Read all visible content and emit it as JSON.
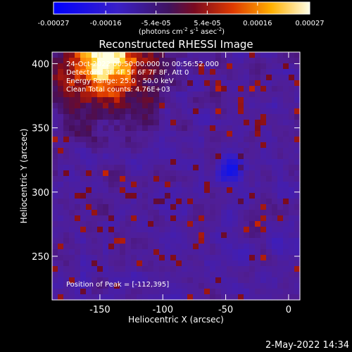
{
  "colorbar": {
    "ticks": [
      "-0.00027",
      "-0.00016",
      "-5.4e-05",
      "5.4e-05",
      "0.00016",
      "0.00027"
    ],
    "units_main": "(photons cm",
    "units_sup1": "-2",
    "units_mid": " s",
    "units_sup2": "-1",
    "units_end": " asec",
    "units_sup3": "-2",
    "units_close": ")",
    "range": [
      -0.00027,
      0.00027
    ]
  },
  "chart_data": {
    "type": "heatmap",
    "title": "Reconstructed RHESSI Image",
    "xlabel": "Heliocentric X (arcsec)",
    "ylabel": "Heliocentric Y (arcsec)",
    "xlim": [
      -188,
      9
    ],
    "ylim": [
      216,
      409
    ],
    "x_ticks": [
      -150,
      -100,
      -50,
      0
    ],
    "y_ticks": [
      250,
      300,
      350,
      400
    ],
    "annotations": [
      "24-Oct-2022 00:50:00.000 to 00:56:52.000",
      "Detectors: 3F 4F 5F 6F 7F 8F, Att 0",
      "Energy Range: 25.0 - 50.0 keV",
      "Clean    Total counts: 4.76E+03"
    ],
    "peak_label": "Position of Peak = [-112,395]",
    "peak": [
      -112,
      395
    ],
    "color_table": "rainbow-hot (blue - purple - red - yellow - white)"
  },
  "footer": {
    "timestamp": "2-May-2022 14:34"
  }
}
